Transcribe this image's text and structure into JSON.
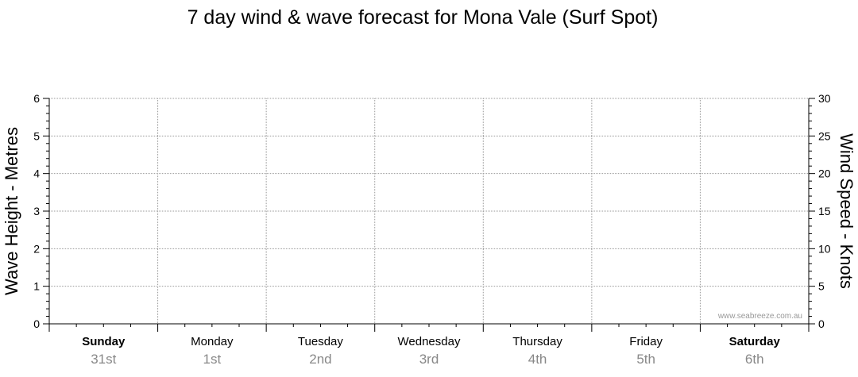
{
  "chart_data": {
    "type": "line",
    "title": "7 day wind & wave forecast for Mona Vale  (Surf Spot)",
    "y_left_label": "Wave Height - Metres",
    "y_right_label": "Wind Speed - Knots",
    "y_left_range": [
      0,
      6
    ],
    "y_left_ticks": [
      "0",
      "1",
      "2",
      "3",
      "4",
      "5",
      "6"
    ],
    "y_right_range": [
      0,
      30
    ],
    "y_right_ticks": [
      "0",
      "5",
      "10",
      "15",
      "20",
      "25",
      "30"
    ],
    "grid": true,
    "days": [
      {
        "name": "Sunday",
        "date": "31st",
        "bold": true
      },
      {
        "name": "Monday",
        "date": "1st",
        "bold": false
      },
      {
        "name": "Tuesday",
        "date": "2nd",
        "bold": false
      },
      {
        "name": "Wednesday",
        "date": "3rd",
        "bold": false
      },
      {
        "name": "Thursday",
        "date": "4th",
        "bold": false
      },
      {
        "name": "Friday",
        "date": "5th",
        "bold": false
      },
      {
        "name": "Saturday",
        "date": "6th",
        "bold": true
      }
    ],
    "series": [],
    "watermark": "www.seabreeze.com.au"
  }
}
